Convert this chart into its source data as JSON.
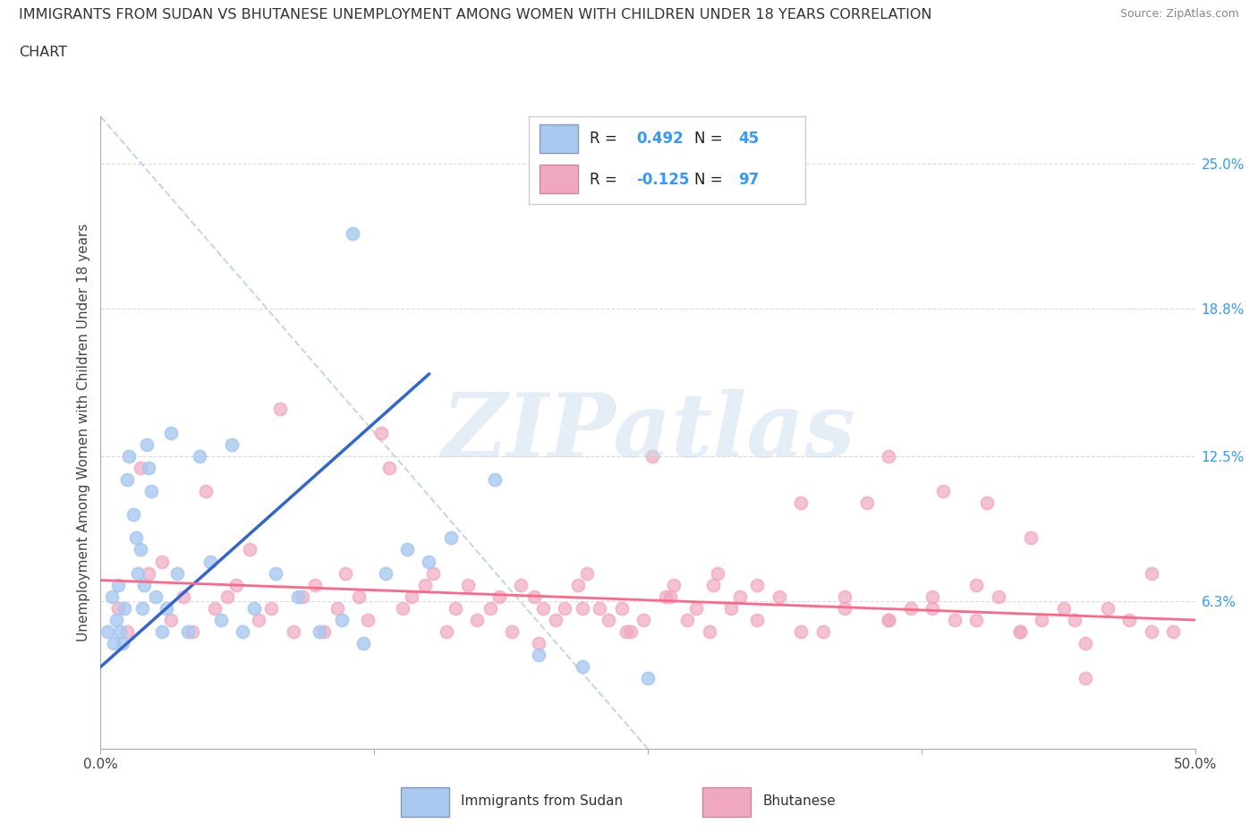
{
  "title_line1": "IMMIGRANTS FROM SUDAN VS BHUTANESE UNEMPLOYMENT AMONG WOMEN WITH CHILDREN UNDER 18 YEARS CORRELATION",
  "title_line2": "CHART",
  "source": "Source: ZipAtlas.com",
  "ylabel": "Unemployment Among Women with Children Under 18 years",
  "sudan_R": 0.492,
  "sudan_N": 45,
  "bhutan_R": -0.125,
  "bhutan_N": 97,
  "sudan_color": "#a8c8f0",
  "bhutan_color": "#f0a8c0",
  "sudan_line_color": "#3366cc",
  "bhutan_line_color": "#ff6688",
  "legend_label_sudan": "Immigrants from Sudan",
  "legend_label_bhutan": "Bhutanese",
  "background_color": "#ffffff",
  "grid_color": "#cccccc",
  "diag_color": "#bbccdd",
  "ytick_values": [
    6.3,
    12.5,
    18.8,
    25.0
  ],
  "ytick_labels": [
    "6.3%",
    "12.5%",
    "18.8%",
    "25.0%"
  ],
  "xtick_show": [
    "0.0%",
    "50.0%"
  ],
  "xlim_data": [
    0,
    50
  ],
  "ylim_data": [
    0,
    27
  ],
  "sudan_x": [
    0.3,
    0.5,
    0.6,
    0.7,
    0.8,
    0.9,
    1.0,
    1.1,
    1.2,
    1.3,
    1.5,
    1.6,
    1.7,
    1.8,
    1.9,
    2.0,
    2.1,
    2.2,
    2.3,
    2.5,
    2.8,
    3.0,
    3.2,
    3.5,
    4.0,
    4.5,
    5.0,
    5.5,
    6.0,
    6.5,
    7.0,
    8.0,
    9.0,
    10.0,
    11.0,
    11.5,
    12.0,
    13.0,
    14.0,
    15.0,
    16.0,
    18.0,
    20.0,
    22.0,
    25.0
  ],
  "sudan_y": [
    5.0,
    6.5,
    4.5,
    5.5,
    7.0,
    5.0,
    4.5,
    6.0,
    11.5,
    12.5,
    10.0,
    9.0,
    7.5,
    8.5,
    6.0,
    7.0,
    13.0,
    12.0,
    11.0,
    6.5,
    5.0,
    6.0,
    13.5,
    7.5,
    5.0,
    12.5,
    8.0,
    5.5,
    13.0,
    5.0,
    6.0,
    7.5,
    6.5,
    5.0,
    5.5,
    22.0,
    4.5,
    7.5,
    8.5,
    8.0,
    9.0,
    11.5,
    4.0,
    3.5,
    3.0
  ],
  "bhutan_x": [
    0.8,
    1.2,
    1.8,
    2.2,
    2.8,
    3.2,
    3.8,
    4.2,
    4.8,
    5.2,
    5.8,
    6.2,
    6.8,
    7.2,
    7.8,
    8.2,
    8.8,
    9.2,
    9.8,
    10.2,
    10.8,
    11.2,
    11.8,
    12.2,
    12.8,
    13.2,
    13.8,
    14.2,
    14.8,
    15.2,
    15.8,
    16.2,
    16.8,
    17.2,
    17.8,
    18.2,
    18.8,
    19.2,
    19.8,
    20.2,
    20.8,
    21.2,
    21.8,
    22.2,
    22.8,
    23.2,
    23.8,
    24.2,
    24.8,
    25.2,
    25.8,
    26.2,
    26.8,
    27.2,
    27.8,
    28.2,
    28.8,
    29.2,
    30.0,
    31.0,
    32.0,
    33.0,
    34.0,
    35.0,
    36.0,
    37.0,
    38.0,
    39.0,
    40.0,
    41.0,
    42.0,
    43.0,
    44.0,
    45.0,
    36.0,
    38.5,
    40.5,
    42.5,
    44.5,
    46.0,
    47.0,
    48.0,
    49.0,
    20.0,
    22.0,
    24.0,
    26.0,
    28.0,
    30.0,
    32.0,
    34.0,
    36.0,
    38.0,
    40.0,
    42.0,
    45.0,
    48.0
  ],
  "bhutan_y": [
    6.0,
    5.0,
    12.0,
    7.5,
    8.0,
    5.5,
    6.5,
    5.0,
    11.0,
    6.0,
    6.5,
    7.0,
    8.5,
    5.5,
    6.0,
    14.5,
    5.0,
    6.5,
    7.0,
    5.0,
    6.0,
    7.5,
    6.5,
    5.5,
    13.5,
    12.0,
    6.0,
    6.5,
    7.0,
    7.5,
    5.0,
    6.0,
    7.0,
    5.5,
    6.0,
    6.5,
    5.0,
    7.0,
    6.5,
    6.0,
    5.5,
    6.0,
    7.0,
    7.5,
    6.0,
    5.5,
    6.0,
    5.0,
    5.5,
    12.5,
    6.5,
    7.0,
    5.5,
    6.0,
    5.0,
    7.5,
    6.0,
    6.5,
    7.0,
    6.5,
    10.5,
    5.0,
    6.0,
    10.5,
    5.5,
    6.0,
    6.5,
    5.5,
    7.0,
    6.5,
    5.0,
    5.5,
    6.0,
    3.0,
    12.5,
    11.0,
    10.5,
    9.0,
    5.5,
    6.0,
    5.5,
    7.5,
    5.0,
    4.5,
    6.0,
    5.0,
    6.5,
    7.0,
    5.5,
    5.0,
    6.5,
    5.5,
    6.0,
    5.5,
    5.0,
    4.5,
    5.0
  ],
  "sudan_line_x": [
    0,
    15
  ],
  "sudan_line_y_start": 3.5,
  "sudan_line_y_end": 16.0,
  "bhutan_line_x": [
    0,
    50
  ],
  "bhutan_line_y_start": 7.2,
  "bhutan_line_y_end": 5.5,
  "diag_line_x": [
    0,
    25
  ],
  "diag_line_y": [
    27,
    0
  ],
  "watermark_text": "ZIPatlas",
  "watermark_color": "#ccddf0",
  "watermark_alpha": 0.5,
  "watermark_fontsize": 72
}
